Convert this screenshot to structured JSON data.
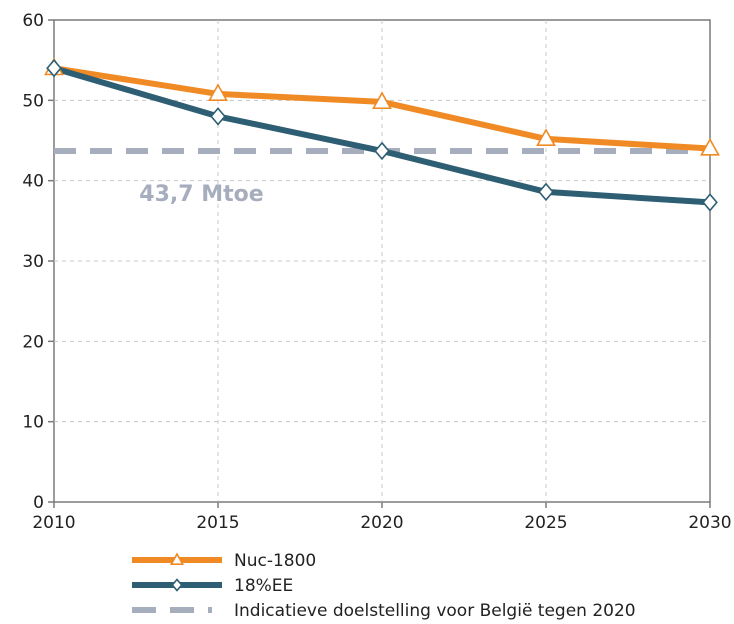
{
  "chart_data": {
    "type": "line",
    "x": [
      2010,
      2015,
      2020,
      2025,
      2030
    ],
    "xticks": [
      "2010",
      "2015",
      "2020",
      "2025",
      "2030"
    ],
    "yticks": [
      "0",
      "10",
      "20",
      "30",
      "40",
      "50",
      "60"
    ],
    "xlim": [
      2010,
      2030
    ],
    "ylim": [
      0,
      60
    ],
    "grid": true,
    "legend_position": "bottom",
    "series": [
      {
        "name": "Nuc-1800",
        "values": [
          54.0,
          50.8,
          49.8,
          45.2,
          44.0
        ],
        "color": "#f08a24",
        "marker": "triangle",
        "style": "solid"
      },
      {
        "name": "18%EE",
        "values": [
          54.0,
          48.0,
          43.7,
          38.6,
          37.3
        ],
        "color": "#2e5e73",
        "marker": "diamond",
        "style": "solid"
      },
      {
        "name": "Indicatieve doelstelling voor België tegen 2020",
        "values": [
          43.7,
          43.7,
          43.7,
          43.7,
          43.7
        ],
        "color": "#a6adbd",
        "marker": "none",
        "style": "dashed"
      }
    ],
    "annotations": [
      {
        "text": "43,7 Mtoe",
        "x": 2012.6,
        "y": 37.5,
        "color": "#a6adbd"
      }
    ]
  }
}
